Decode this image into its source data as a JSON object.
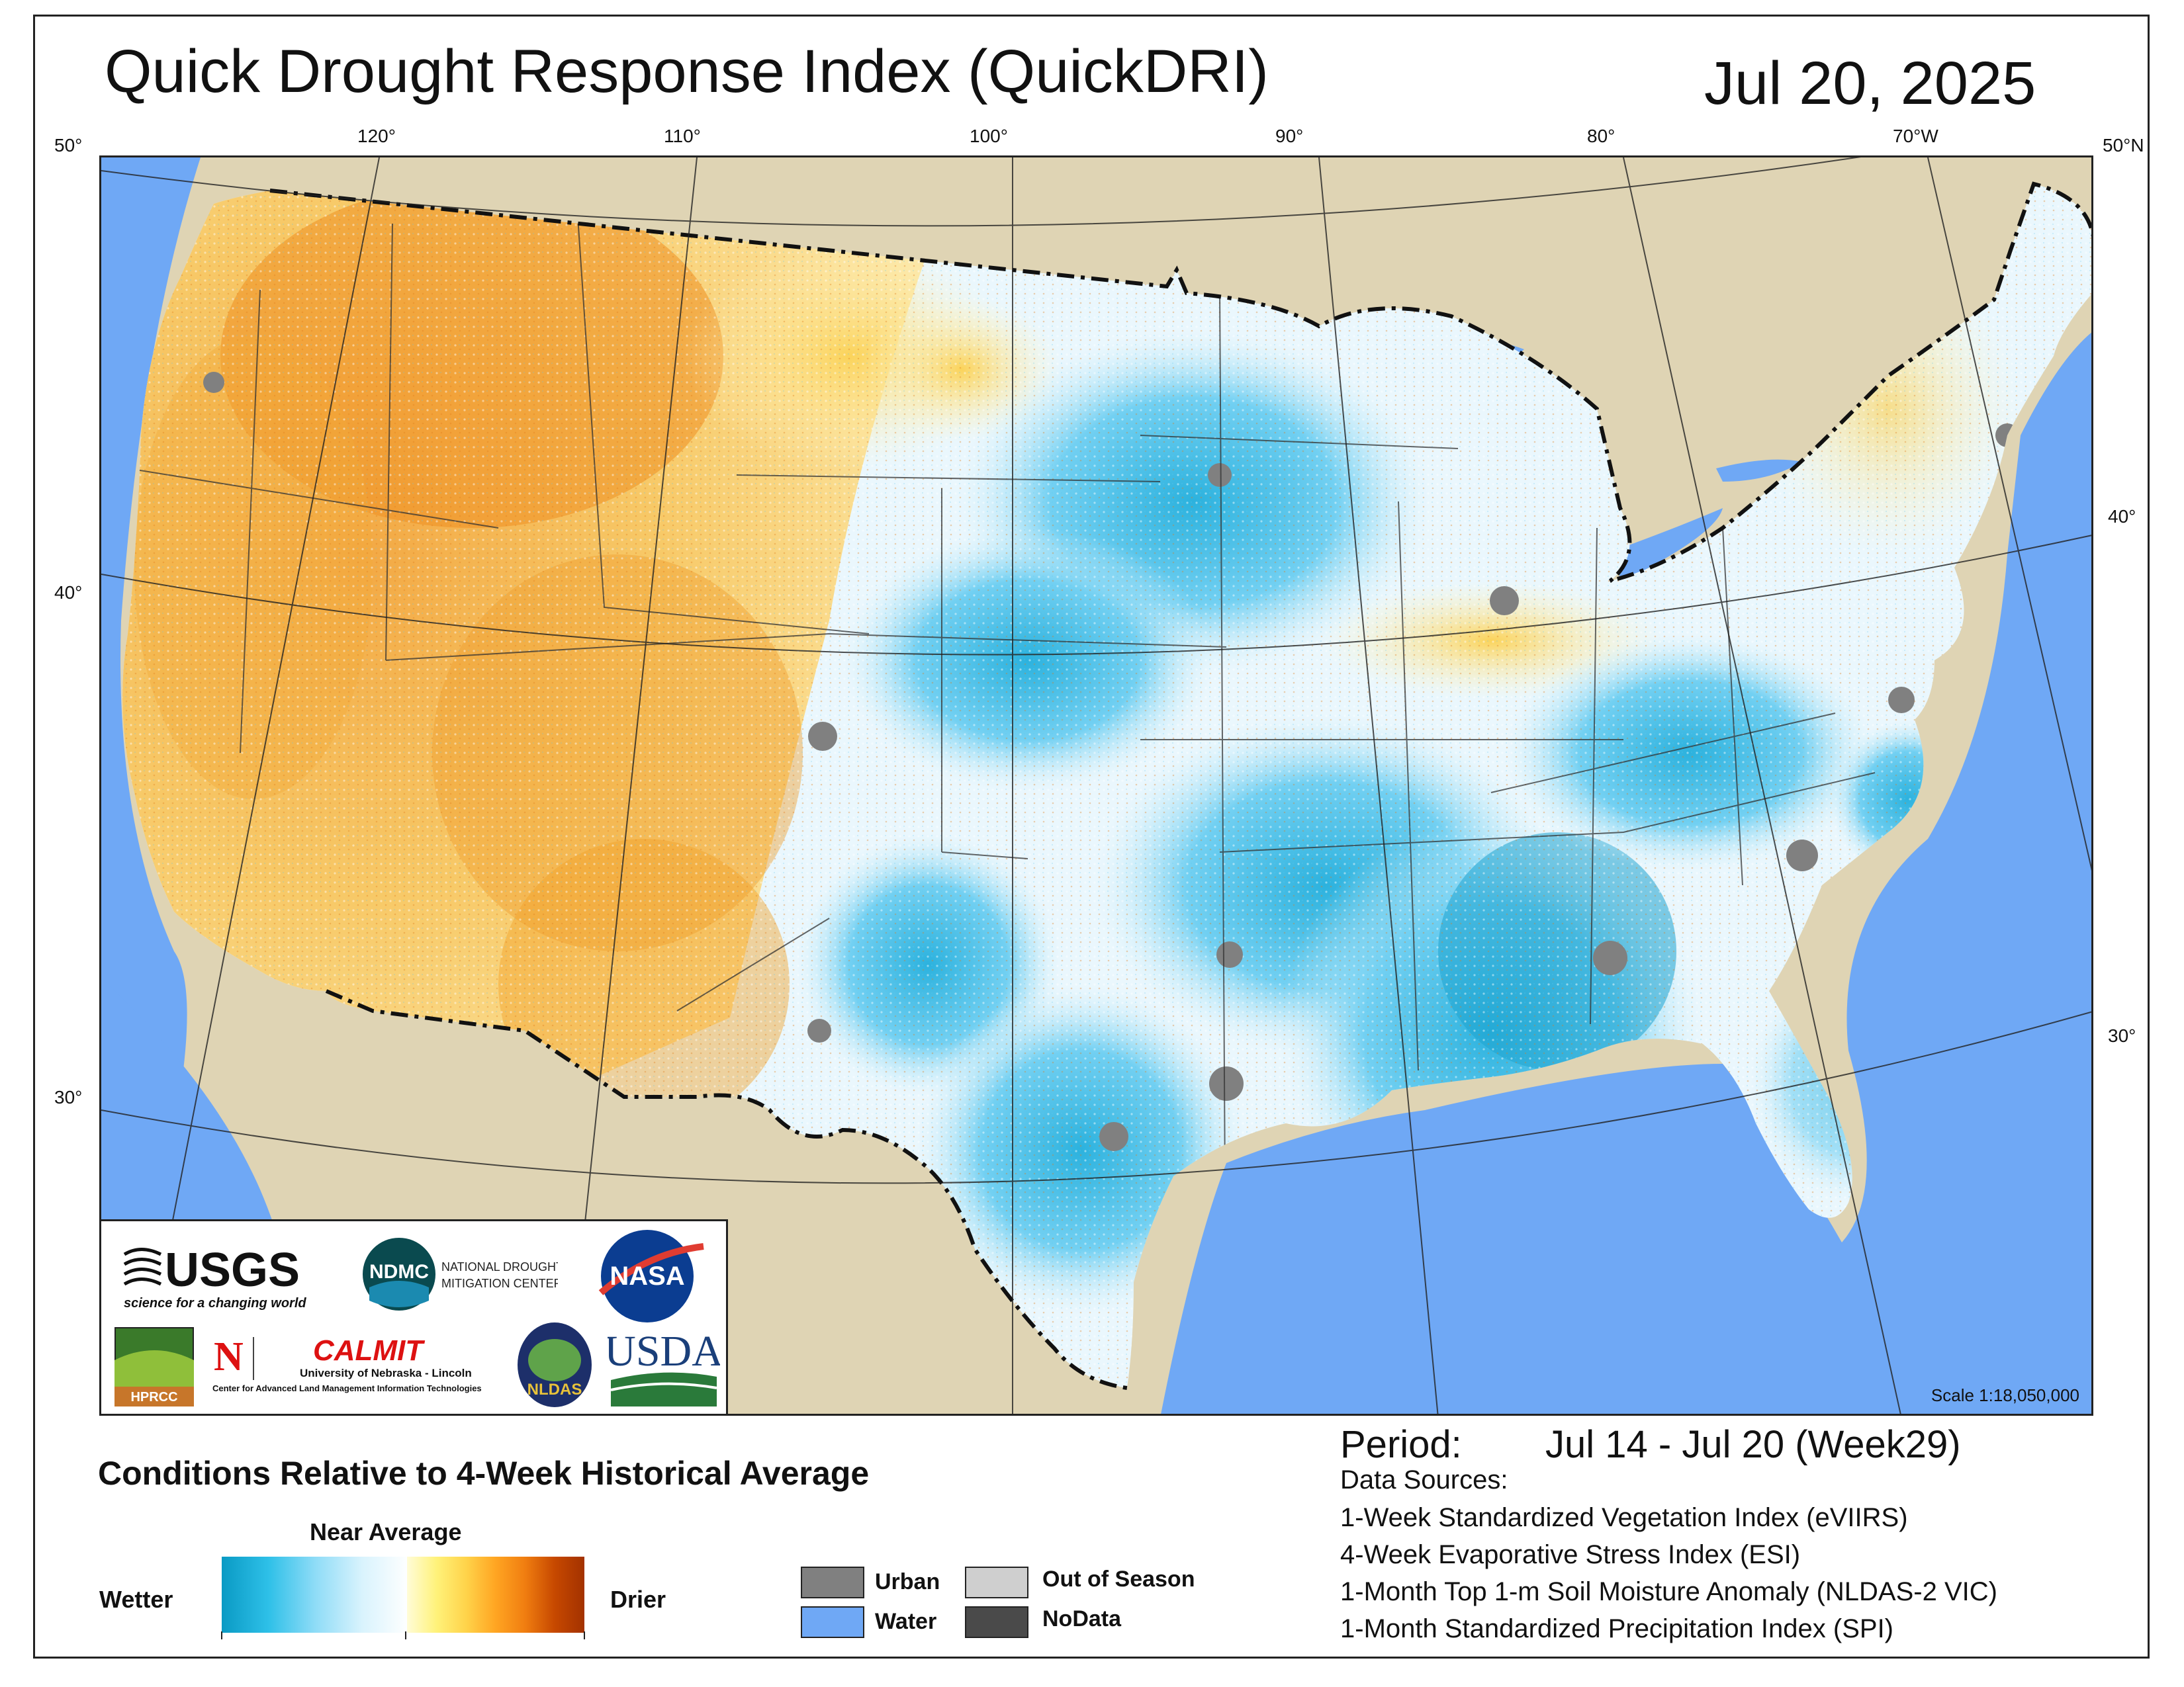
{
  "header": {
    "title": "Quick Drought Response Index (QuickDRI)",
    "date": "Jul 20, 2025"
  },
  "map": {
    "graticule_labels": {
      "top": [
        "120°",
        "110°",
        "100°",
        "90°",
        "80°",
        "70°W"
      ],
      "top_corners": [
        "50°",
        "50°N"
      ],
      "left": [
        "40°",
        "30°"
      ],
      "right": [
        "40°",
        "30°"
      ]
    },
    "scale": "Scale 1:18,050,000",
    "colors": {
      "land_outside": "#dfd4b4",
      "water": "#6fa8f5",
      "wetter": "#0a9ac4",
      "drier": "#c64800",
      "near_average": "#ffffff",
      "urban": "#808080"
    }
  },
  "logos": {
    "usgs": {
      "name": "USGS",
      "tagline": "science for a changing world"
    },
    "ndmc": {
      "short": "NDMC",
      "line1": "NATIONAL DROUGHT",
      "line2": "MITIGATION CENTER"
    },
    "nasa": {
      "name": "NASA"
    },
    "hprcc": {
      "name": "HPRCC"
    },
    "calmit": {
      "name": "CALMIT",
      "line1": "University of Nebraska - Lincoln",
      "line2": "Center for Advanced Land Management Information Technologies"
    },
    "nldas": {
      "name": "NLDAS"
    },
    "usda": {
      "name": "USDA"
    }
  },
  "period": {
    "label": "Period:",
    "value": "Jul 14 - Jul 20 (Week29)"
  },
  "data_sources": {
    "heading": "Data Sources:",
    "items": [
      "1-Week Standardized Vegetation Index (eVIIRS)",
      "4-Week Evaporative Stress Index (ESI)",
      "1-Month Top 1-m Soil Moisture Anomaly (NLDAS-2 VIC)",
      "1-Month Standardized Precipitation Index (SPI)"
    ]
  },
  "legend": {
    "title": "Conditions Relative to 4-Week Historical Average",
    "near_average": "Near Average",
    "wetter": "Wetter",
    "drier": "Drier",
    "categories": [
      {
        "label": "Urban",
        "color": "#808080"
      },
      {
        "label": "Water",
        "color": "#6fa8f5"
      },
      {
        "label": "Out of Season",
        "color": "#cfcfcf"
      },
      {
        "label": "NoData",
        "color": "#4a4a4a"
      }
    ]
  }
}
